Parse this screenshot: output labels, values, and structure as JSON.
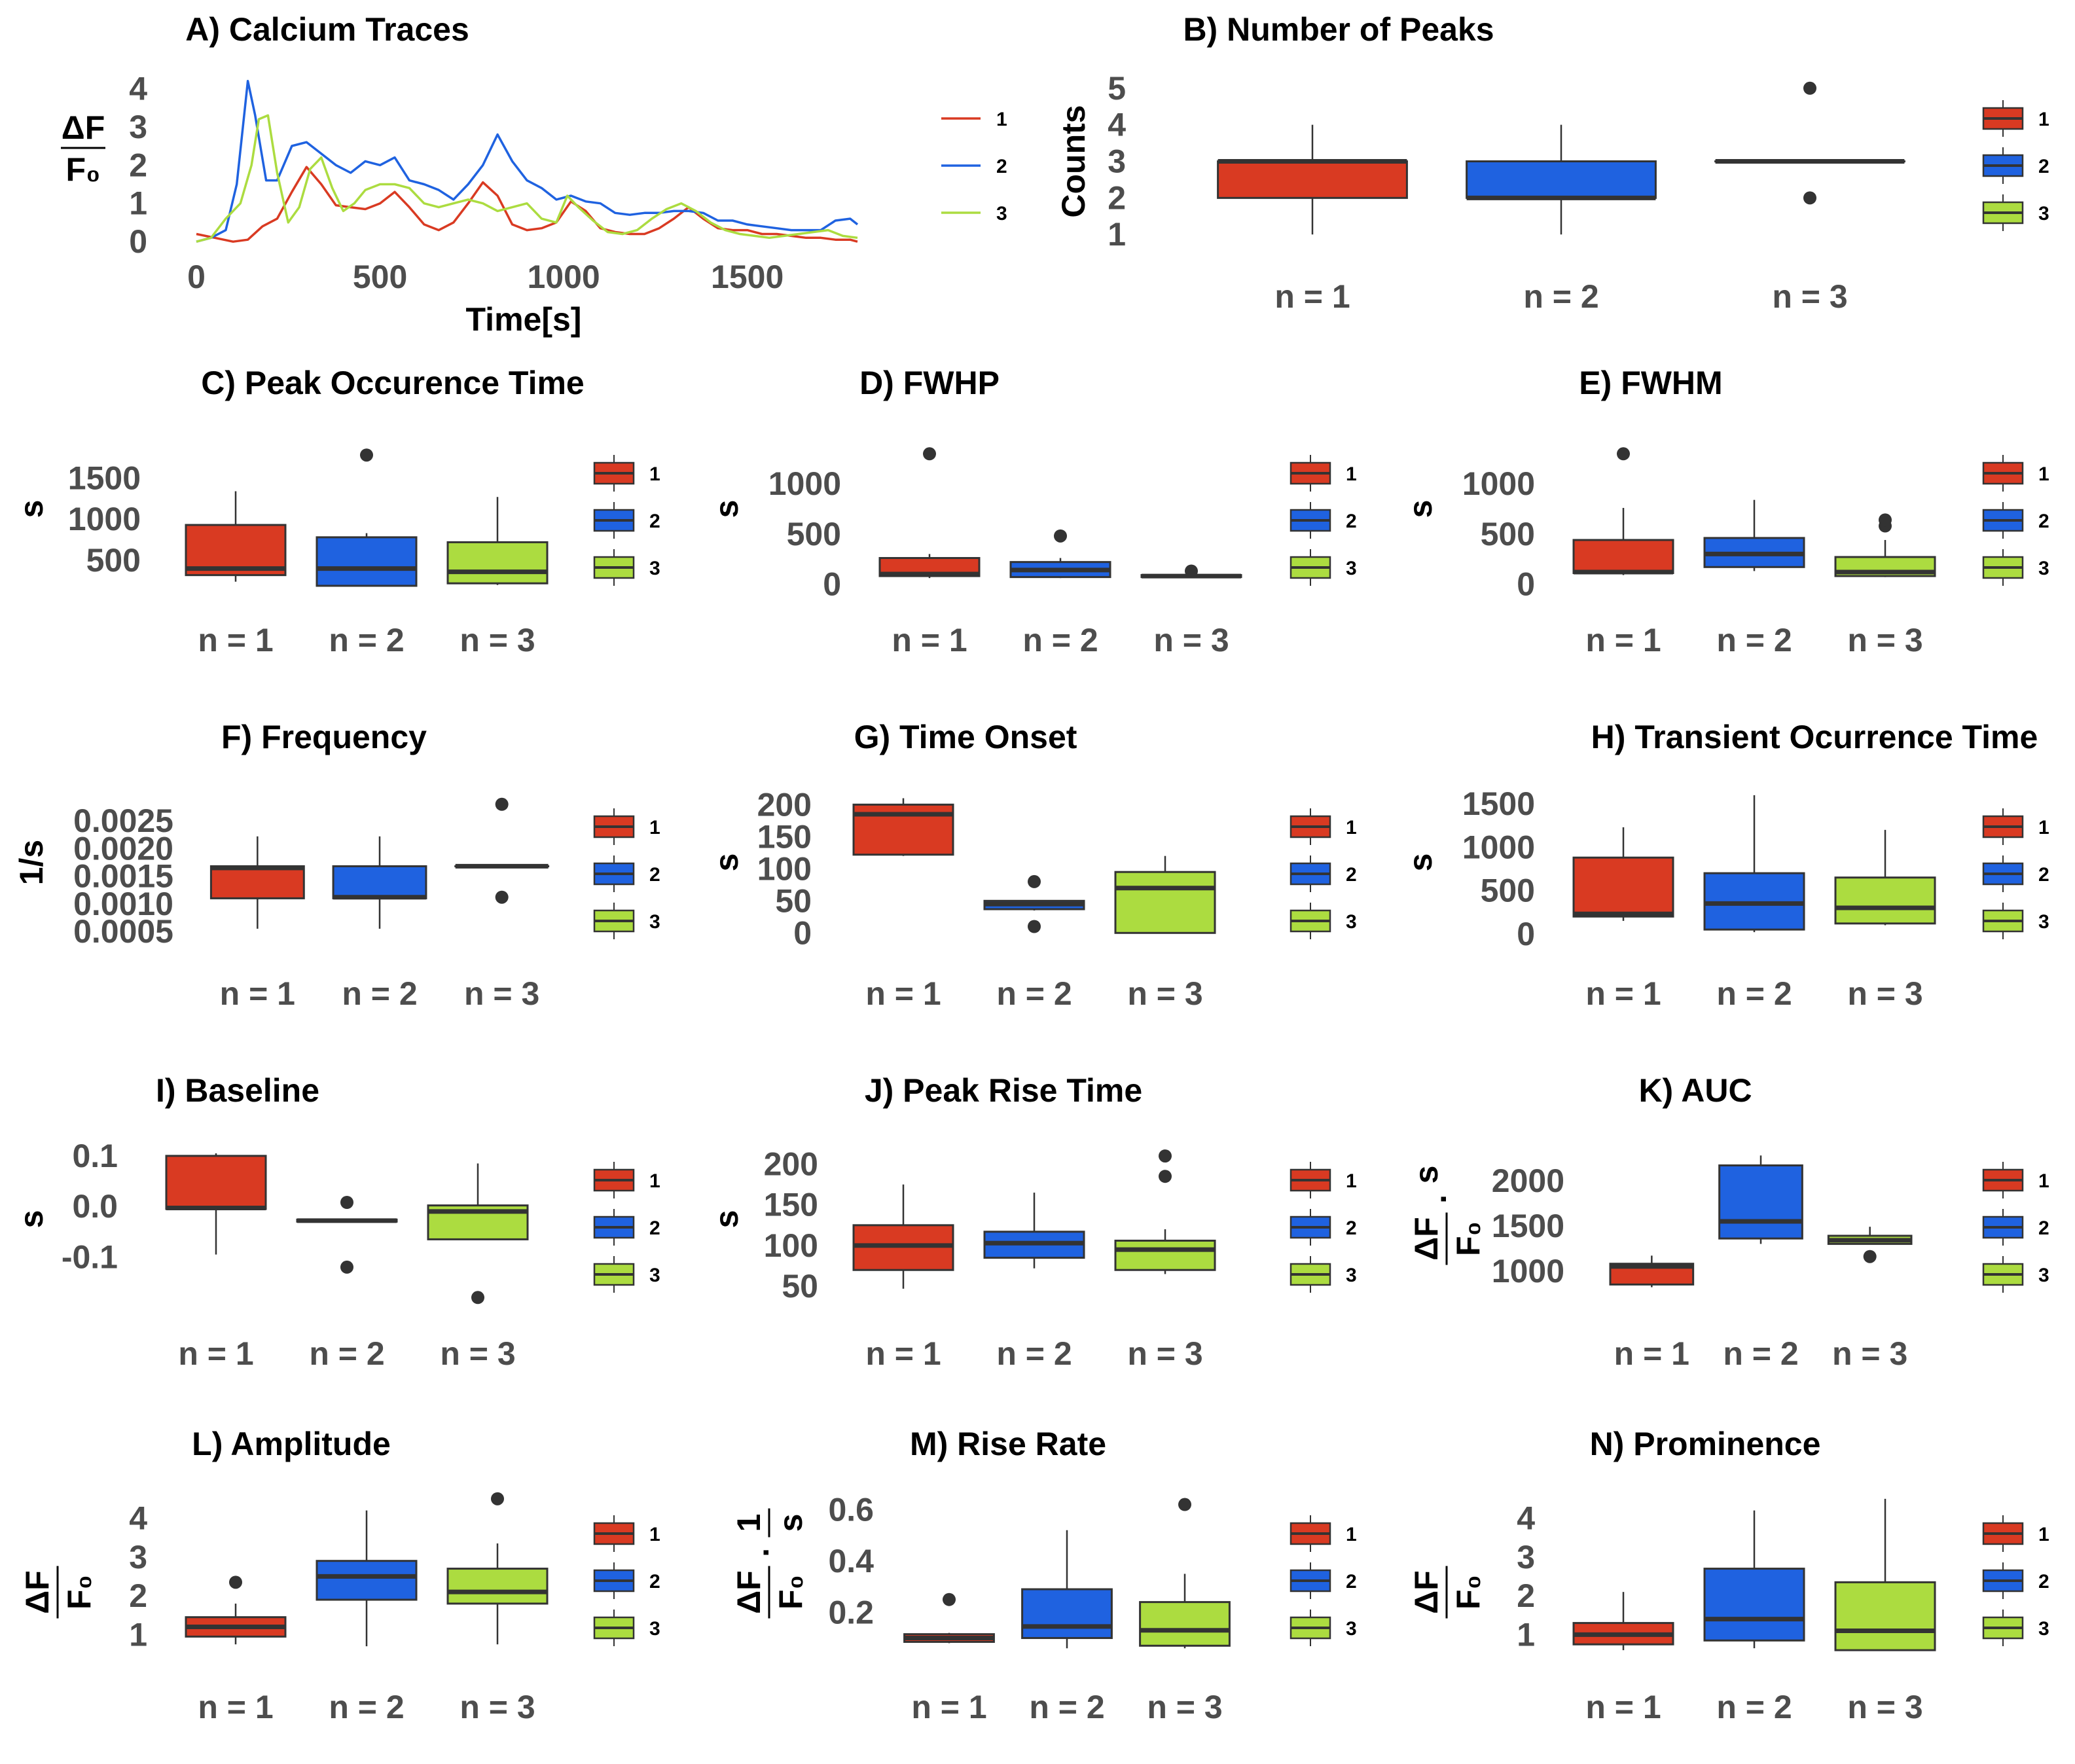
{
  "colors": {
    "g1": "#d93a22",
    "g2": "#1f62e0",
    "g3": "#acdc40",
    "ink": "#333333",
    "tick": "#4d4d4d"
  },
  "legend": [
    "1",
    "2",
    "3"
  ],
  "chart_data": [
    {
      "id": "A",
      "type": "line",
      "title": "A) Calcium Traces",
      "xlabel": "Time[s]",
      "ylabel": "ΔF/F0",
      "xticks": [
        "0",
        "500",
        "1000",
        "1500"
      ],
      "yticks": [
        "0",
        "1",
        "2",
        "3",
        "4"
      ],
      "xlim": [
        0,
        1800
      ],
      "ylim": [
        -0.1,
        4.4
      ],
      "series": [
        {
          "name": "1",
          "x": [
            0,
            50,
            100,
            140,
            180,
            220,
            260,
            300,
            340,
            380,
            420,
            460,
            500,
            540,
            580,
            620,
            660,
            700,
            740,
            780,
            820,
            860,
            900,
            940,
            980,
            1020,
            1060,
            1100,
            1140,
            1180,
            1220,
            1260,
            1300,
            1340,
            1380,
            1420,
            1460,
            1500,
            1540,
            1580,
            1620,
            1660,
            1700,
            1740,
            1780,
            1800
          ],
          "y": [
            0.2,
            0.1,
            0.0,
            0.05,
            0.4,
            0.6,
            1.3,
            1.95,
            1.5,
            0.95,
            0.9,
            0.85,
            1.0,
            1.3,
            0.9,
            0.45,
            0.3,
            0.5,
            1.0,
            1.55,
            1.2,
            0.45,
            0.3,
            0.35,
            0.5,
            1.05,
            0.8,
            0.35,
            0.25,
            0.2,
            0.2,
            0.35,
            0.6,
            0.9,
            0.6,
            0.35,
            0.3,
            0.3,
            0.2,
            0.2,
            0.15,
            0.1,
            0.1,
            0.05,
            0.05,
            0.0
          ]
        },
        {
          "name": "2",
          "x": [
            0,
            40,
            80,
            110,
            140,
            160,
            190,
            220,
            260,
            300,
            340,
            380,
            420,
            460,
            500,
            540,
            580,
            620,
            660,
            700,
            740,
            780,
            820,
            860,
            900,
            940,
            980,
            1020,
            1060,
            1100,
            1140,
            1180,
            1220,
            1260,
            1300,
            1340,
            1380,
            1420,
            1460,
            1500,
            1540,
            1580,
            1620,
            1660,
            1700,
            1740,
            1780,
            1800
          ],
          "y": [
            0.0,
            0.1,
            0.3,
            1.5,
            4.2,
            3.3,
            1.6,
            1.6,
            2.5,
            2.6,
            2.3,
            2.0,
            1.8,
            2.1,
            2.0,
            2.2,
            1.6,
            1.5,
            1.35,
            1.1,
            1.5,
            2.0,
            2.8,
            2.1,
            1.6,
            1.4,
            1.1,
            1.2,
            1.05,
            1.0,
            0.75,
            0.7,
            0.75,
            0.75,
            0.8,
            0.8,
            0.75,
            0.55,
            0.55,
            0.45,
            0.4,
            0.35,
            0.3,
            0.3,
            0.3,
            0.55,
            0.6,
            0.45
          ]
        },
        {
          "name": "3",
          "x": [
            0,
            40,
            80,
            120,
            150,
            170,
            195,
            220,
            250,
            280,
            310,
            340,
            370,
            400,
            430,
            460,
            500,
            540,
            580,
            620,
            660,
            700,
            740,
            780,
            820,
            860,
            900,
            940,
            980,
            1010,
            1040,
            1080,
            1120,
            1160,
            1200,
            1240,
            1280,
            1320,
            1360,
            1400,
            1440,
            1480,
            1520,
            1560,
            1600,
            1640,
            1680,
            1720,
            1760,
            1800
          ],
          "y": [
            0.0,
            0.1,
            0.6,
            1.0,
            2.0,
            3.2,
            3.3,
            1.8,
            0.5,
            0.9,
            1.9,
            2.2,
            1.4,
            0.8,
            1.0,
            1.35,
            1.5,
            1.5,
            1.4,
            1.0,
            0.9,
            1.0,
            1.1,
            1.0,
            0.8,
            0.9,
            1.0,
            0.6,
            0.5,
            1.2,
            0.9,
            0.55,
            0.25,
            0.2,
            0.3,
            0.6,
            0.85,
            1.0,
            0.8,
            0.5,
            0.3,
            0.2,
            0.15,
            0.1,
            0.15,
            0.2,
            0.25,
            0.3,
            0.15,
            0.1
          ]
        }
      ]
    },
    {
      "id": "B",
      "type": "box",
      "title": "B) Number of Peaks",
      "ylabel": "Counts",
      "yticks": [
        "1",
        "2",
        "3",
        "4",
        "5"
      ],
      "ylim": [
        0.7,
        5.3
      ],
      "categories": [
        "n = 1",
        "n = 2",
        "n = 3"
      ],
      "boxes": [
        {
          "min": 1,
          "q1": 2,
          "median": 3,
          "q3": 3,
          "max": 4,
          "outliers": []
        },
        {
          "min": 1,
          "q1": 2,
          "median": 2,
          "q3": 3,
          "max": 4,
          "outliers": []
        },
        {
          "min": 3,
          "q1": 3,
          "median": 3,
          "q3": 3,
          "max": 3,
          "outliers": [
            5,
            2
          ]
        }
      ]
    },
    {
      "id": "C",
      "type": "box",
      "title": "C) Peak Occurence Time",
      "ylabel": "s",
      "yticks": [
        "500",
        "1000",
        "1500"
      ],
      "ylim": [
        150,
        2100
      ],
      "categories": [
        "n = 1",
        "n = 2",
        "n = 3"
      ],
      "boxes": [
        {
          "min": 240,
          "q1": 320,
          "median": 400,
          "q3": 930,
          "max": 1340,
          "outliers": []
        },
        {
          "min": 180,
          "q1": 190,
          "median": 400,
          "q3": 780,
          "max": 830,
          "outliers": [
            1780
          ]
        },
        {
          "min": 200,
          "q1": 220,
          "median": 360,
          "q3": 720,
          "max": 1270,
          "outliers": []
        }
      ]
    },
    {
      "id": "D",
      "type": "box",
      "title": "D) FWHP",
      "ylabel": "s",
      "yticks": [
        "0",
        "500",
        "1000"
      ],
      "ylim": [
        -50,
        1550
      ],
      "categories": [
        "n = 1",
        "n = 2",
        "n = 3"
      ],
      "boxes": [
        {
          "min": 60,
          "q1": 80,
          "median": 100,
          "q3": 260,
          "max": 300,
          "outliers": [
            1300
          ]
        },
        {
          "min": 60,
          "q1": 70,
          "median": 140,
          "q3": 220,
          "max": 260,
          "outliers": [
            480
          ]
        },
        {
          "min": 60,
          "q1": 70,
          "median": 80,
          "q3": 90,
          "max": 100,
          "outliers": [
            130
          ]
        }
      ]
    },
    {
      "id": "E",
      "type": "box",
      "title": "E) FWHM",
      "ylabel": "s",
      "yticks": [
        "0",
        "500",
        "1000"
      ],
      "ylim": [
        -50,
        1550
      ],
      "categories": [
        "n = 1",
        "n = 2",
        "n = 3"
      ],
      "boxes": [
        {
          "min": 90,
          "q1": 110,
          "median": 120,
          "q3": 440,
          "max": 760,
          "outliers": [
            1300
          ]
        },
        {
          "min": 130,
          "q1": 170,
          "median": 300,
          "q3": 460,
          "max": 840,
          "outliers": []
        },
        {
          "min": 70,
          "q1": 80,
          "median": 120,
          "q3": 270,
          "max": 440,
          "outliers": [
            580,
            640
          ]
        }
      ]
    },
    {
      "id": "F",
      "type": "box",
      "title": "F) Frequency",
      "ylabel": "1/s",
      "yticks": [
        "0.0005",
        "0.0010",
        "0.0015",
        "0.0020",
        "0.0025"
      ],
      "ylim": [
        0.0003,
        0.0032
      ],
      "categories": [
        "n = 1",
        "n = 2",
        "n = 3"
      ],
      "boxes": [
        {
          "min": 0.00055,
          "q1": 0.0011,
          "median": 0.00165,
          "q3": 0.00168,
          "max": 0.00222,
          "outliers": []
        },
        {
          "min": 0.00055,
          "q1": 0.0011,
          "median": 0.00112,
          "q3": 0.00168,
          "max": 0.00222,
          "outliers": []
        },
        {
          "min": 0.00168,
          "q1": 0.00168,
          "median": 0.00168,
          "q3": 0.00168,
          "max": 0.00168,
          "outliers": [
            0.0028,
            0.00112
          ]
        }
      ]
    },
    {
      "id": "G",
      "type": "box",
      "title": "G) Time Onset",
      "ylabel": "s",
      "yticks": [
        "0",
        "50",
        "100",
        "150",
        "200"
      ],
      "ylim": [
        -15,
        235
      ],
      "categories": [
        "n = 1",
        "n = 2",
        "n = 3"
      ],
      "boxes": [
        {
          "min": 120,
          "q1": 122,
          "median": 185,
          "q3": 200,
          "max": 210,
          "outliers": []
        },
        {
          "min": 35,
          "q1": 37,
          "median": 45,
          "q3": 50,
          "max": 50,
          "outliers": [
            80,
            10
          ]
        },
        {
          "min": 0,
          "q1": 0,
          "median": 70,
          "q3": 95,
          "max": 120,
          "outliers": []
        }
      ]
    },
    {
      "id": "H",
      "type": "box",
      "title": "H) Transient Ocurrence Time",
      "ylabel": "s",
      "yticks": [
        "0",
        "500",
        "1000",
        "1500"
      ],
      "ylim": [
        -100,
        1750
      ],
      "categories": [
        "n = 1",
        "n = 2",
        "n = 3"
      ],
      "boxes": [
        {
          "min": 150,
          "q1": 200,
          "median": 230,
          "q3": 880,
          "max": 1230,
          "outliers": []
        },
        {
          "min": 20,
          "q1": 50,
          "median": 350,
          "q3": 700,
          "max": 1600,
          "outliers": []
        },
        {
          "min": 100,
          "q1": 120,
          "median": 300,
          "q3": 650,
          "max": 1200,
          "outliers": []
        }
      ]
    },
    {
      "id": "I",
      "type": "box",
      "title": "I) Baseline",
      "ylabel": "s",
      "yticks": [
        "-0.1",
        "0.0",
        "0.1"
      ],
      "ylim": [
        -0.19,
        0.14
      ],
      "categories": [
        "n = 1",
        "n = 2",
        "n = 3"
      ],
      "boxes": [
        {
          "min": -0.095,
          "q1": -0.005,
          "median": -0.003,
          "q3": 0.1,
          "max": 0.105,
          "outliers": []
        },
        {
          "min": -0.03,
          "q1": -0.03,
          "median": -0.028,
          "q3": -0.026,
          "max": -0.026,
          "outliers": [
            0.008,
            -0.12
          ]
        },
        {
          "min": -0.065,
          "q1": -0.065,
          "median": -0.01,
          "q3": 0.002,
          "max": 0.085,
          "outliers": [
            -0.18
          ]
        }
      ]
    },
    {
      "id": "J",
      "type": "box",
      "title": "J) Peak Rise Time",
      "ylabel": "s",
      "yticks": [
        "50",
        "100",
        "150",
        "200"
      ],
      "ylim": [
        30,
        235
      ],
      "categories": [
        "n = 1",
        "n = 2",
        "n = 3"
      ],
      "boxes": [
        {
          "min": 47,
          "q1": 70,
          "median": 100,
          "q3": 125,
          "max": 175,
          "outliers": []
        },
        {
          "min": 72,
          "q1": 85,
          "median": 103,
          "q3": 117,
          "max": 165,
          "outliers": []
        },
        {
          "min": 65,
          "q1": 70,
          "median": 95,
          "q3": 106,
          "max": 120,
          "outliers": [
            210,
            185
          ]
        }
      ]
    },
    {
      "id": "K",
      "type": "box",
      "title": "K) AUC",
      "ylabel": "ΔF/F0 · s",
      "yticks": [
        "1000",
        "1500",
        "2000"
      ],
      "ylim": [
        650,
        2500
      ],
      "categories": [
        "n = 1",
        "n = 2",
        "n = 3"
      ],
      "boxes": [
        {
          "min": 820,
          "q1": 850,
          "median": 1050,
          "q3": 1080,
          "max": 1170,
          "outliers": []
        },
        {
          "min": 1300,
          "q1": 1360,
          "median": 1550,
          "q3": 2170,
          "max": 2280,
          "outliers": []
        },
        {
          "min": 1300,
          "q1": 1300,
          "median": 1340,
          "q3": 1390,
          "max": 1490,
          "outliers": [
            1160
          ]
        }
      ]
    },
    {
      "id": "L",
      "type": "box",
      "title": "L) Amplitude",
      "ylabel": "ΔF/F0",
      "yticks": [
        "1",
        "2",
        "3",
        "4"
      ],
      "ylim": [
        0.45,
        4.75
      ],
      "categories": [
        "n = 1",
        "n = 2",
        "n = 3"
      ],
      "boxes": [
        {
          "min": 0.75,
          "q1": 0.95,
          "median": 1.2,
          "q3": 1.45,
          "max": 1.8,
          "outliers": [
            2.35
          ]
        },
        {
          "min": 0.7,
          "q1": 1.9,
          "median": 2.5,
          "q3": 2.9,
          "max": 4.2,
          "outliers": []
        },
        {
          "min": 0.75,
          "q1": 1.8,
          "median": 2.1,
          "q3": 2.7,
          "max": 3.35,
          "outliers": [
            4.5
          ]
        }
      ]
    },
    {
      "id": "M",
      "type": "box",
      "title": "M) Rise Rate",
      "ylabel": "ΔF/F0 · 1/s",
      "yticks": [
        "0.2",
        "0.4",
        "0.6"
      ],
      "ylim": [
        0.03,
        0.68
      ],
      "categories": [
        "n = 1",
        "n = 2",
        "n = 3"
      ],
      "boxes": [
        {
          "min": 0.08,
          "q1": 0.085,
          "median": 0.1,
          "q3": 0.115,
          "max": 0.12,
          "outliers": [
            0.25
          ]
        },
        {
          "min": 0.06,
          "q1": 0.1,
          "median": 0.145,
          "q3": 0.29,
          "max": 0.52,
          "outliers": []
        },
        {
          "min": 0.06,
          "q1": 0.07,
          "median": 0.13,
          "q3": 0.24,
          "max": 0.35,
          "outliers": [
            0.62
          ]
        }
      ]
    },
    {
      "id": "N",
      "type": "box",
      "title": "N) Prominence",
      "ylabel": "ΔF/F0",
      "yticks": [
        "1",
        "2",
        "3",
        "4"
      ],
      "ylim": [
        0.45,
        4.75
      ],
      "categories": [
        "n = 1",
        "n = 2",
        "n = 3"
      ],
      "boxes": [
        {
          "min": 0.6,
          "q1": 0.75,
          "median": 1.0,
          "q3": 1.3,
          "max": 2.1,
          "outliers": []
        },
        {
          "min": 0.65,
          "q1": 0.85,
          "median": 1.4,
          "q3": 2.7,
          "max": 4.2,
          "outliers": []
        },
        {
          "min": 0.6,
          "q1": 0.6,
          "median": 1.1,
          "q3": 2.35,
          "max": 4.5,
          "outliers": []
        }
      ]
    }
  ]
}
